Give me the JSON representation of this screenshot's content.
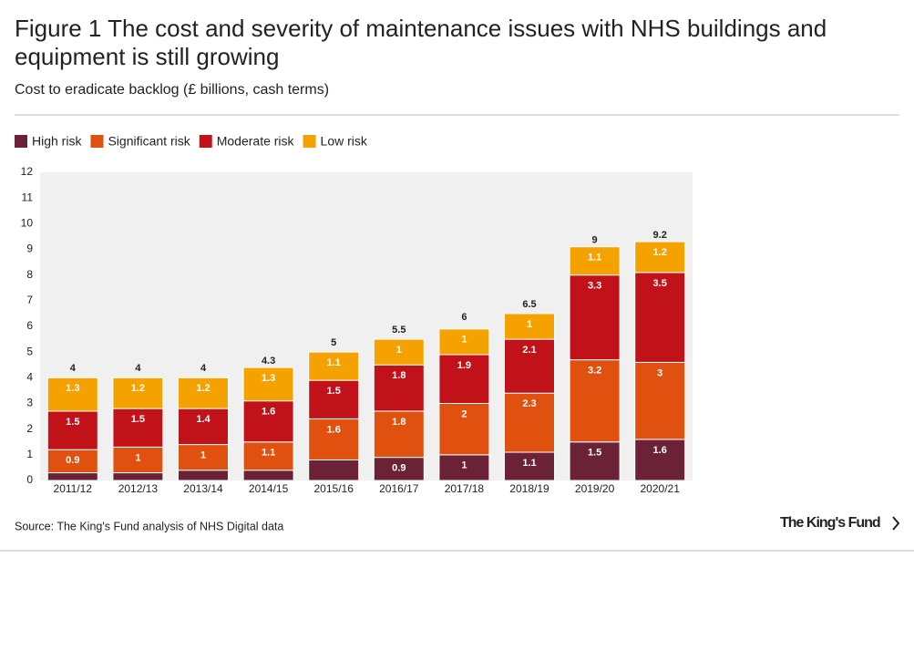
{
  "chart_data": {
    "type": "stacked-bar",
    "title": "Figure 1 The cost and severity of maintenance issues with NHS buildings and equipment is still growing",
    "subtitle": "Cost to eradicate backlog (£ billions, cash terms)",
    "categories": [
      "2011/12",
      "2012/13",
      "2013/14",
      "2014/15",
      "2015/16",
      "2016/17",
      "2017/18",
      "2018/19",
      "2019/20",
      "2020/21"
    ],
    "series": [
      {
        "name": "High risk",
        "color": "#6b2236",
        "values": [
          0.3,
          0.3,
          0.4,
          0.4,
          0.8,
          0.9,
          1,
          1.1,
          1.5,
          1.6
        ],
        "value_labels": [
          null,
          null,
          null,
          null,
          null,
          "0.9",
          "1",
          "1.1",
          "1.5",
          "1.6"
        ]
      },
      {
        "name": "Significant risk",
        "color": "#e0500f",
        "values": [
          0.9,
          1,
          1,
          1.1,
          1.6,
          1.8,
          2,
          2.3,
          3.2,
          3
        ],
        "value_labels": [
          "0.9",
          "1",
          "1",
          "1.1",
          "1.6",
          "1.8",
          "2",
          "2.3",
          "3.2",
          "3"
        ]
      },
      {
        "name": "Moderate risk",
        "color": "#c1121a",
        "values": [
          1.5,
          1.5,
          1.4,
          1.6,
          1.5,
          1.8,
          1.9,
          2.1,
          3.3,
          3.5
        ],
        "value_labels": [
          "1.5",
          "1.5",
          "1.4",
          "1.6",
          "1.5",
          "1.8",
          "1.9",
          "2.1",
          "3.3",
          "3.5"
        ]
      },
      {
        "name": "Low risk",
        "color": "#f5a200",
        "values": [
          1.3,
          1.2,
          1.2,
          1.3,
          1.1,
          1,
          1,
          1,
          1.1,
          1.2
        ],
        "value_labels": [
          "1.3",
          "1.2",
          "1.2",
          "1.3",
          "1.1",
          "1",
          "1",
          "1",
          "1.1",
          "1.2"
        ]
      }
    ],
    "totals": [
      4,
      4,
      4,
      4.3,
      5,
      5.5,
      6,
      6.5,
      9,
      9.2
    ],
    "ylim": [
      0,
      12
    ],
    "yticks": [
      0,
      1,
      2,
      3,
      4,
      5,
      6,
      7,
      8,
      9,
      10,
      11,
      12
    ],
    "grid": false,
    "plot_background": "#f0f0f0",
    "source": "Source: The King's Fund analysis of NHS Digital data",
    "logo": "The King's Fund"
  }
}
